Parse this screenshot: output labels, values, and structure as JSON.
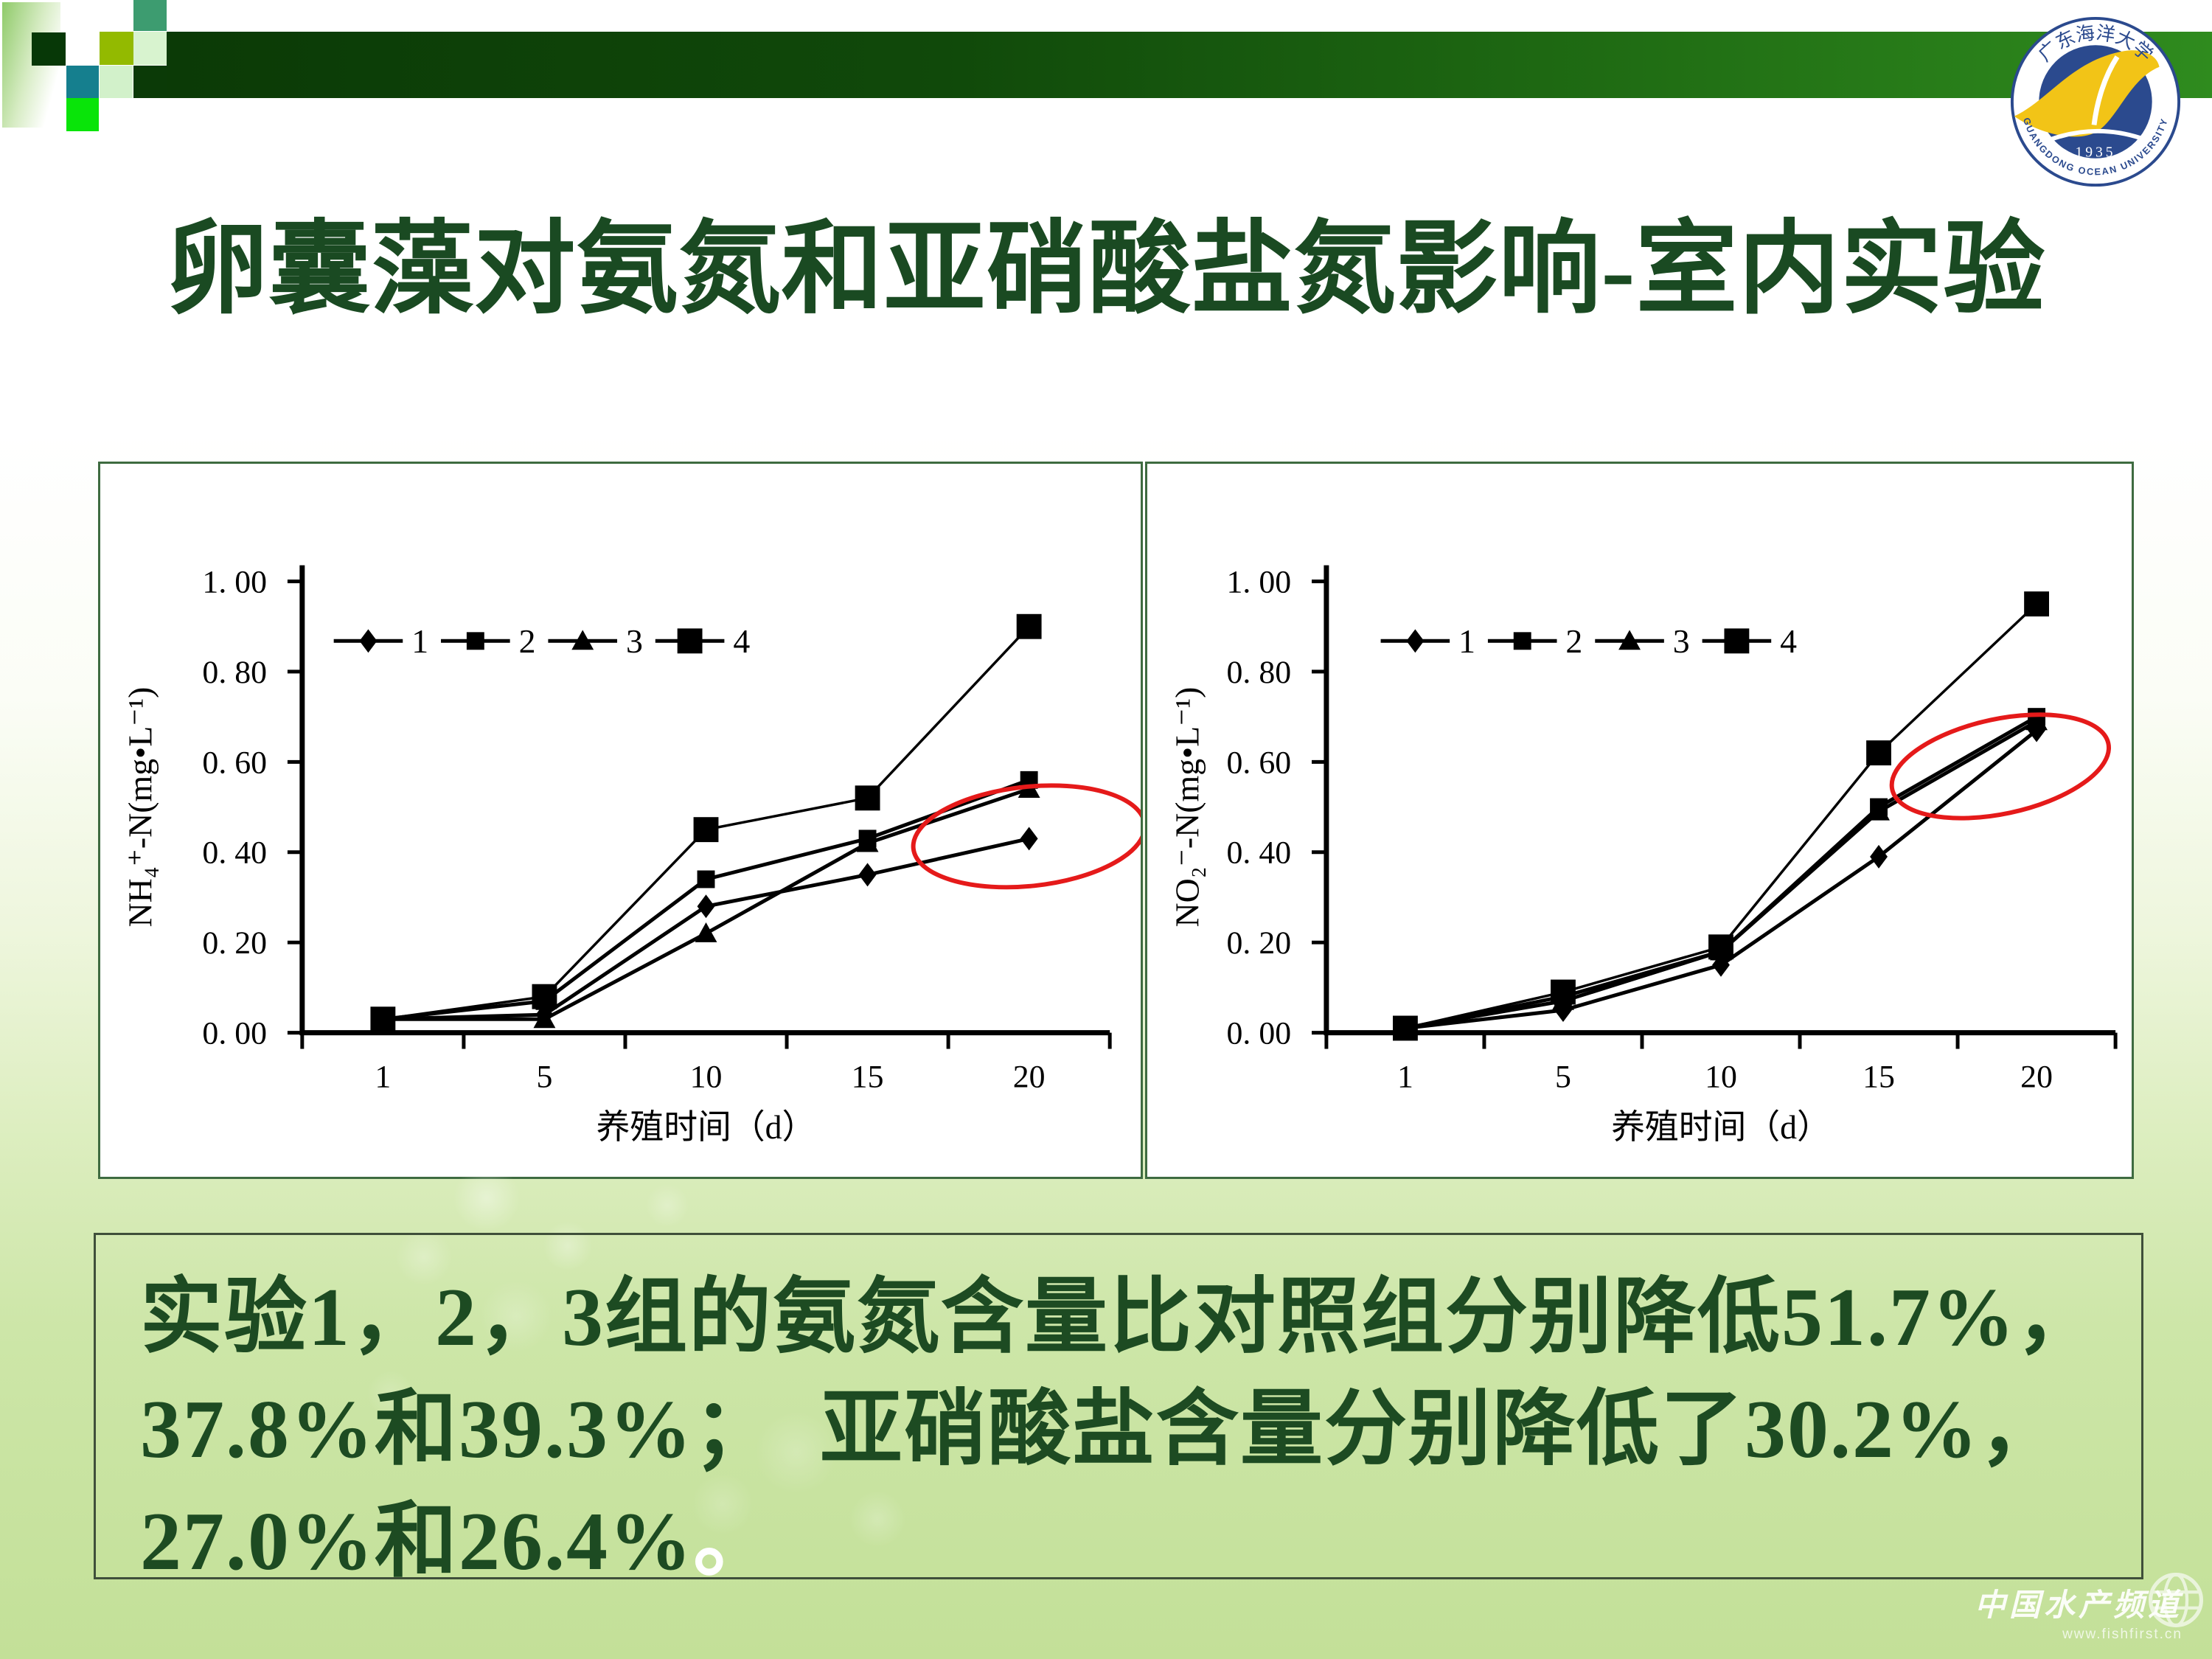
{
  "slide": {
    "title": "卵囊藻对氨氮和亚硝酸盐氮影响-室内实验"
  },
  "colors": {
    "title_green": "#1a4a22",
    "banner_dark_green": "#0b3a06",
    "banner_light_green": "#2f8b1e",
    "panel_border_green": "#3e6b40",
    "series_black": "#000000",
    "annotation_red": "#e51a1a",
    "slide_bottom_green": "#c3e098"
  },
  "logo": {
    "university_cn": "广东海洋大学",
    "university_en": "GUANGDONG OCEAN UNIVERSITY",
    "year": "1935"
  },
  "chart_data": [
    {
      "type": "line",
      "title": "",
      "xlabel": "养殖时间（d）",
      "ylabel": "NH₄⁺-N(mg•L⁻¹)",
      "categories": [
        "1",
        "5",
        "10",
        "15",
        "20"
      ],
      "y_ticks": [
        "0. 00",
        "0. 20",
        "0. 40",
        "0. 60",
        "0. 80",
        "1. 00"
      ],
      "ylim": [
        0,
        1
      ],
      "grid": false,
      "legend_position": "top-inside",
      "series": [
        {
          "name": "1",
          "marker": "diamond",
          "values": [
            0.03,
            0.04,
            0.28,
            0.35,
            0.43
          ]
        },
        {
          "name": "2",
          "marker": "square",
          "values": [
            0.03,
            0.07,
            0.34,
            0.43,
            0.56
          ]
        },
        {
          "name": "3",
          "marker": "triangle",
          "values": [
            0.03,
            0.03,
            0.22,
            0.42,
            0.54
          ]
        },
        {
          "name": "4",
          "marker": "square-large",
          "values": [
            0.03,
            0.08,
            0.45,
            0.52,
            0.9
          ]
        }
      ],
      "annotation_ellipse": {
        "center_category": 4.0,
        "center_value": 0.435,
        "rx_categories": 0.72,
        "ry_value": 0.11,
        "rotation_deg": -6,
        "color": "#e51a1a"
      }
    },
    {
      "type": "line",
      "title": "",
      "xlabel": "养殖时间（d）",
      "ylabel": "NO₂⁻-N(mg•L⁻¹)",
      "categories": [
        "1",
        "5",
        "10",
        "15",
        "20"
      ],
      "y_ticks": [
        "0. 00",
        "0. 20",
        "0. 40",
        "0. 60",
        "0. 80",
        "1. 00"
      ],
      "ylim": [
        0,
        1
      ],
      "grid": false,
      "legend_position": "top-inside",
      "series": [
        {
          "name": "1",
          "marker": "diamond",
          "values": [
            0.01,
            0.05,
            0.15,
            0.39,
            0.67
          ]
        },
        {
          "name": "2",
          "marker": "square",
          "values": [
            0.01,
            0.08,
            0.18,
            0.5,
            0.7
          ]
        },
        {
          "name": "3",
          "marker": "triangle",
          "values": [
            0.01,
            0.07,
            0.18,
            0.49,
            0.69
          ]
        },
        {
          "name": "4",
          "marker": "square-large",
          "values": [
            0.01,
            0.09,
            0.19,
            0.62,
            0.95
          ]
        }
      ],
      "annotation_ellipse": {
        "center_category": 3.77,
        "center_value": 0.59,
        "rx_categories": 0.7,
        "ry_value": 0.105,
        "rotation_deg": -12,
        "color": "#e51a1a"
      }
    }
  ],
  "summary": {
    "lines": [
      "实验1，2，3组的氨氮含量比对照组分别降低51.7%，",
      "37.8%和39.3%；　亚硝酸盐含量分别降低了30.2%，",
      "27.0%和26.4%"
    ],
    "trailing_period": "。"
  },
  "watermark": {
    "name": "中国水产频道",
    "url": "www.fishfirst.cn"
  }
}
